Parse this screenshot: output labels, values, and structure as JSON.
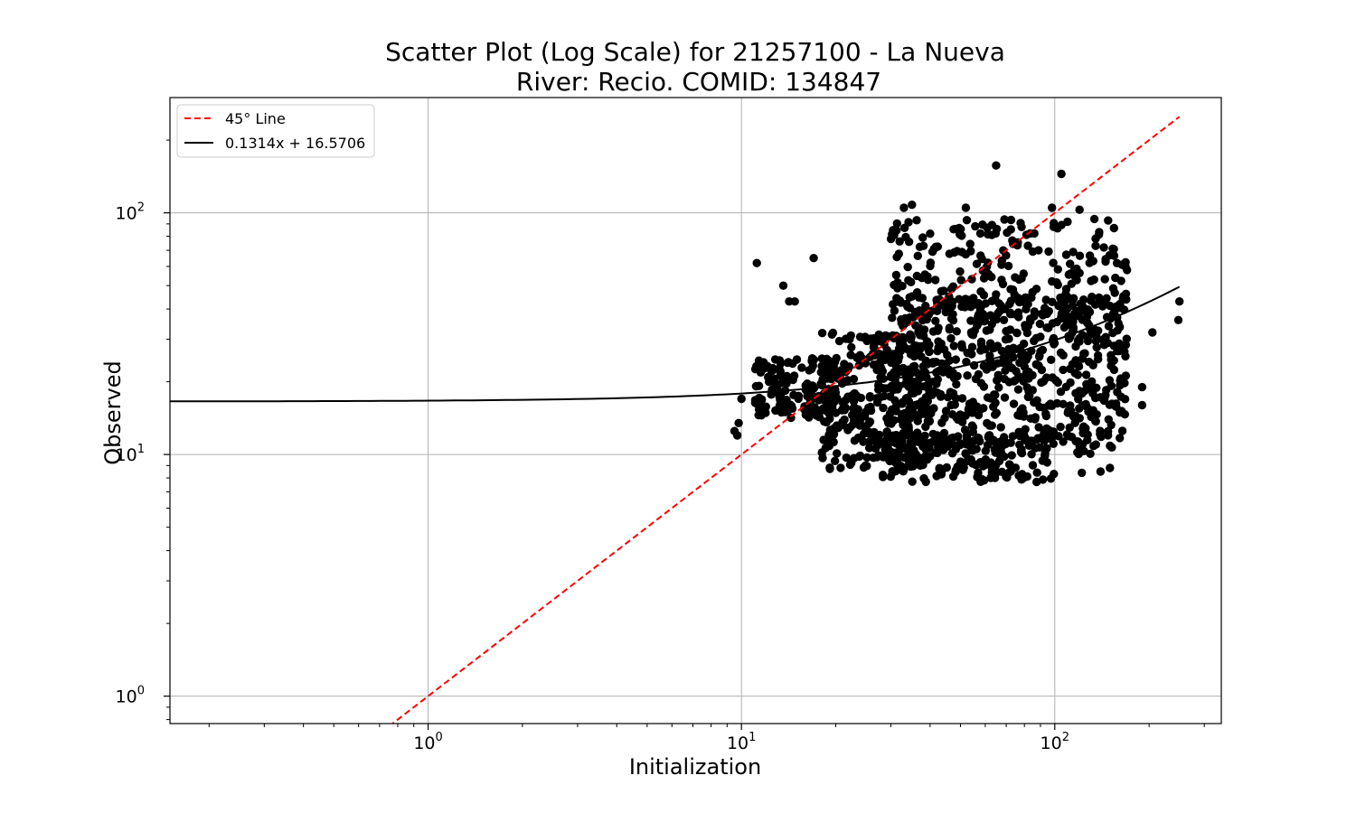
{
  "chart_data": {
    "type": "scatter",
    "title": "Scatter Plot (Log Scale) for 21257100 - La Nueva",
    "subtitle": "River: Recio. COMID: 134847",
    "xlabel": "Initialization",
    "ylabel": "Observed",
    "xscale": "log",
    "yscale": "log",
    "xlim": [
      0.15,
      340
    ],
    "ylim": [
      0.77,
      300
    ],
    "grid": true,
    "x_ticks": [
      {
        "value": 1,
        "base": "10",
        "exp": "0"
      },
      {
        "value": 10,
        "base": "10",
        "exp": "1"
      },
      {
        "value": 100,
        "base": "10",
        "exp": "2"
      }
    ],
    "y_ticks": [
      {
        "value": 1,
        "base": "10",
        "exp": "0"
      },
      {
        "value": 10,
        "base": "10",
        "exp": "1"
      },
      {
        "value": 100,
        "base": "10",
        "exp": "2"
      }
    ],
    "legend": {
      "position": "top-left",
      "entries": [
        {
          "label": "45° Line",
          "color": "#ff0000",
          "style": "dashed"
        },
        {
          "label": "0.1314x + 16.5706",
          "color": "#000000",
          "style": "solid"
        }
      ]
    },
    "series": [
      {
        "name": "45° Line",
        "type": "line",
        "color": "#ff0000",
        "style": "dashed",
        "x": [
          0.75,
          250
        ],
        "y": [
          0.75,
          250
        ]
      },
      {
        "name": "0.1314x + 16.5706",
        "type": "line",
        "color": "#000000",
        "style": "solid",
        "slope": 0.1314,
        "intercept": 16.5706,
        "x_range": [
          0.15,
          250
        ]
      },
      {
        "name": "Observed vs Initialization",
        "type": "scatter",
        "color": "#000000",
        "n_points": 1500,
        "highlight_points": [
          {
            "x": 11.2,
            "y": 62
          },
          {
            "x": 17,
            "y": 65
          },
          {
            "x": 65,
            "y": 157
          },
          {
            "x": 105,
            "y": 145
          },
          {
            "x": 33,
            "y": 105
          },
          {
            "x": 35,
            "y": 108
          },
          {
            "x": 52,
            "y": 105
          },
          {
            "x": 98,
            "y": 105
          },
          {
            "x": 13.6,
            "y": 50
          },
          {
            "x": 14.2,
            "y": 43
          },
          {
            "x": 14.8,
            "y": 43
          },
          {
            "x": 9.5,
            "y": 12.5
          },
          {
            "x": 9.7,
            "y": 12
          },
          {
            "x": 9.8,
            "y": 13.5
          },
          {
            "x": 10,
            "y": 17
          },
          {
            "x": 250,
            "y": 43
          },
          {
            "x": 248,
            "y": 36
          },
          {
            "x": 205,
            "y": 32
          },
          {
            "x": 190,
            "y": 16
          },
          {
            "x": 190,
            "y": 19
          },
          {
            "x": 40,
            "y": 82
          },
          {
            "x": 63,
            "y": 81
          },
          {
            "x": 30,
            "y": 78
          },
          {
            "x": 120,
            "y": 103
          },
          {
            "x": 135,
            "y": 73
          },
          {
            "x": 148,
            "y": 93
          },
          {
            "x": 170,
            "y": 58
          },
          {
            "x": 122,
            "y": 8.4
          },
          {
            "x": 140,
            "y": 8.5
          },
          {
            "x": 150,
            "y": 8.8
          }
        ],
        "clusters": [
          {
            "x_range": [
              11,
              20
            ],
            "y_range": [
              14,
              25
            ],
            "share": 0.1
          },
          {
            "x_range": [
              18,
              40
            ],
            "y_range": [
              8.7,
              32
            ],
            "share": 0.22
          },
          {
            "x_range": [
              28,
              100
            ],
            "y_range": [
              7.7,
              12
            ],
            "share": 0.1
          },
          {
            "x_range": [
              30,
              170
            ],
            "y_range": [
              10,
              45
            ],
            "share": 0.43
          },
          {
            "x_range": [
              30,
              170
            ],
            "y_range": [
              35,
              95
            ],
            "share": 0.15
          }
        ]
      }
    ]
  }
}
